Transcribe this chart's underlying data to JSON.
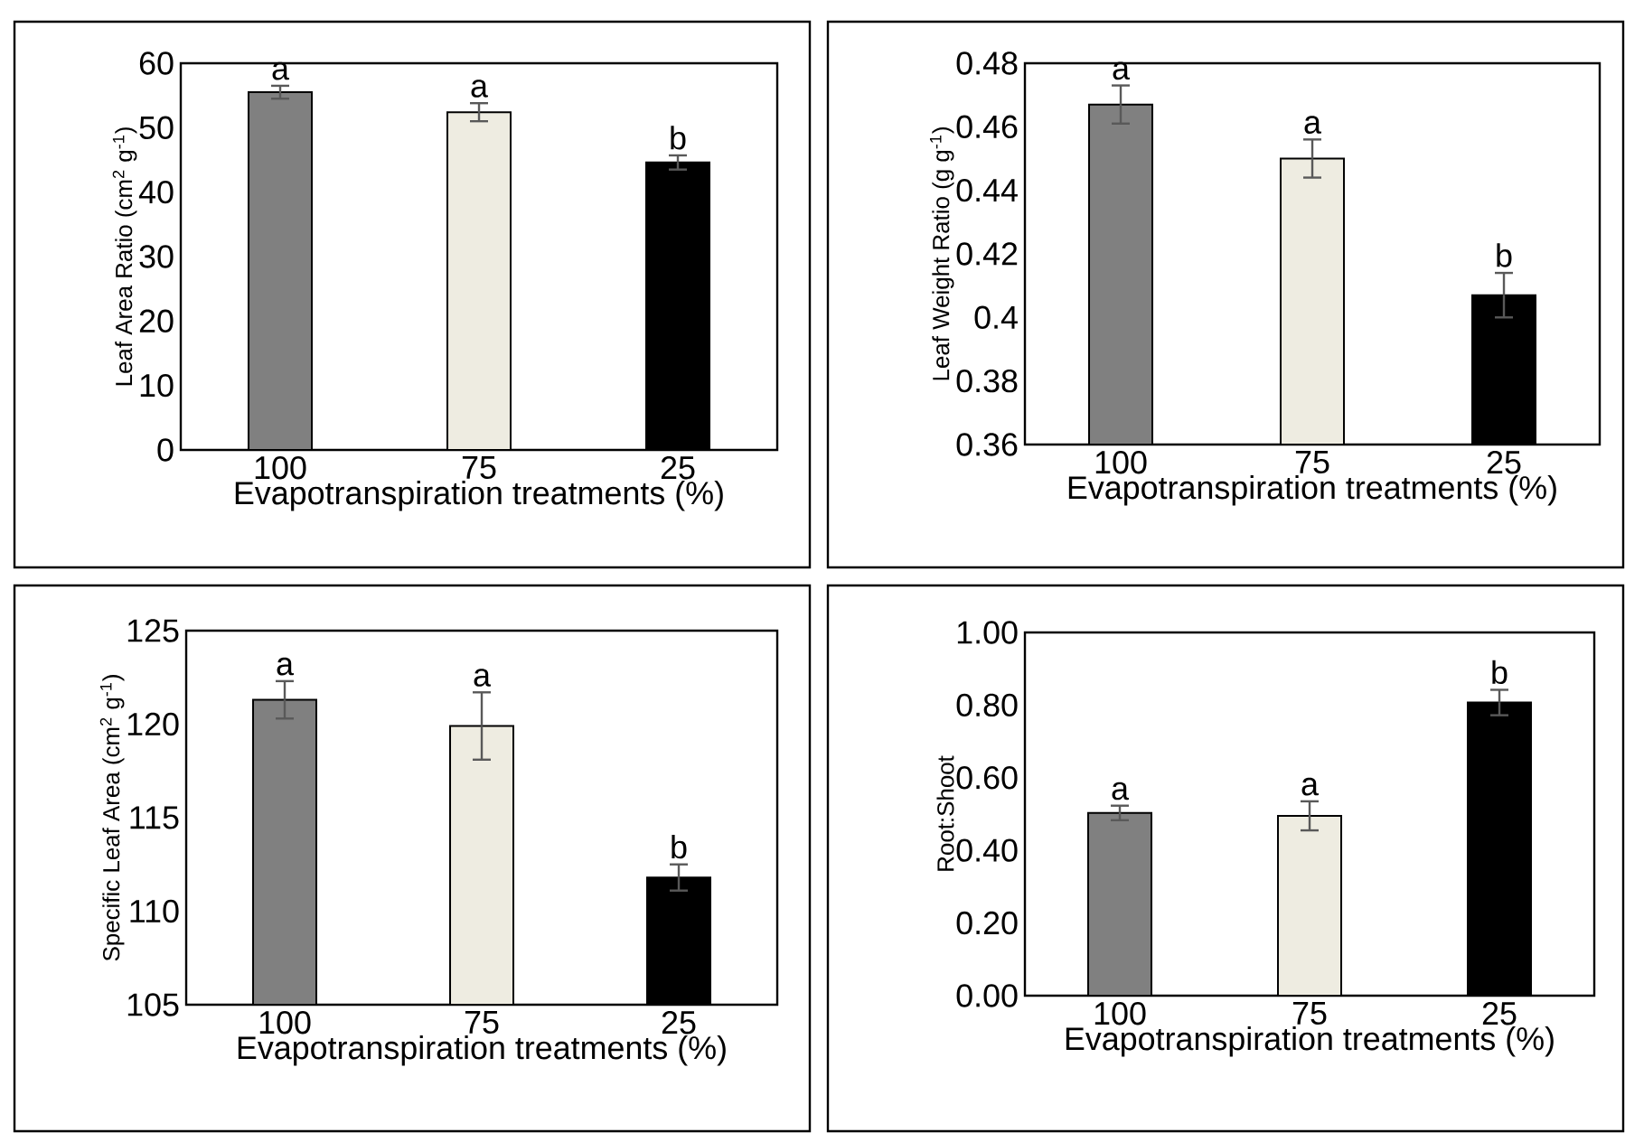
{
  "chart_data": [
    {
      "type": "bar",
      "ylabel": "Leaf Area Ratio (cm$^{2}$ g$^{-1}$)",
      "xlabel": "Evapotranspiration treatments (%)",
      "categories": [
        "100",
        "75",
        "25"
      ],
      "values": [
        55.5,
        52.4,
        44.6
      ],
      "errors": [
        1,
        1.4,
        1.1
      ],
      "colors": [
        "#808080",
        "#eeece1",
        "#000000"
      ],
      "ylim": [
        0,
        60
      ],
      "yticks": [
        0,
        10,
        20,
        30,
        40,
        50,
        60
      ],
      "annotations": [
        "a",
        "a",
        "b"
      ]
    },
    {
      "type": "bar",
      "ylabel": "Leaf Weight Ratio (g g$^{-1}$)",
      "xlabel": "Evapotranspiration treatments (%)",
      "categories": [
        "100",
        "75",
        "25"
      ],
      "values": [
        0.467,
        0.45,
        0.407
      ],
      "errors": [
        0.006,
        0.006,
        0.007
      ],
      "colors": [
        "#808080",
        "#eeece1",
        "#000000"
      ],
      "ylim": [
        0.36,
        0.48
      ],
      "yticks": [
        0.36,
        0.38,
        0.4,
        0.42,
        0.44,
        0.46,
        0.48
      ],
      "annotations": [
        "a",
        "a",
        "b"
      ]
    },
    {
      "type": "bar",
      "ylabel": "Specific Leaf Area (cm$^{2}$ g$^{-1}$)",
      "xlabel": "Evapotranspiration treatments (%)",
      "categories": [
        "100",
        "75",
        "25"
      ],
      "values": [
        121.3,
        119.9,
        111.8
      ],
      "errors": [
        1,
        1.8,
        0.7
      ],
      "colors": [
        "#808080",
        "#eeece1",
        "#000000"
      ],
      "ylim": [
        105,
        125
      ],
      "yticks": [
        105,
        110,
        115,
        120,
        125
      ],
      "annotations": [
        "a",
        "a",
        "b"
      ]
    },
    {
      "type": "bar",
      "ylabel": "Root:Shoot",
      "xlabel": "Evapotranspiration treatments (%)",
      "categories": [
        "100",
        "75",
        "25"
      ],
      "values": [
        0.503,
        0.495,
        0.807
      ],
      "errors": [
        0.02,
        0.04,
        0.035
      ],
      "colors": [
        "#808080",
        "#eeece1",
        "#000000"
      ],
      "ylim": [
        0,
        1
      ],
      "yticks": [
        {
          "value": 0,
          "label": "0.00"
        },
        {
          "value": 0.2,
          "label": "0.20"
        },
        {
          "value": 0.4,
          "label": "0.40"
        },
        {
          "value": 0.6,
          "label": "0.60"
        },
        {
          "value": 0.8,
          "label": "0.80"
        },
        {
          "value": 1,
          "label": "1.00"
        }
      ],
      "annotations": [
        "a",
        "a",
        "b"
      ]
    }
  ]
}
